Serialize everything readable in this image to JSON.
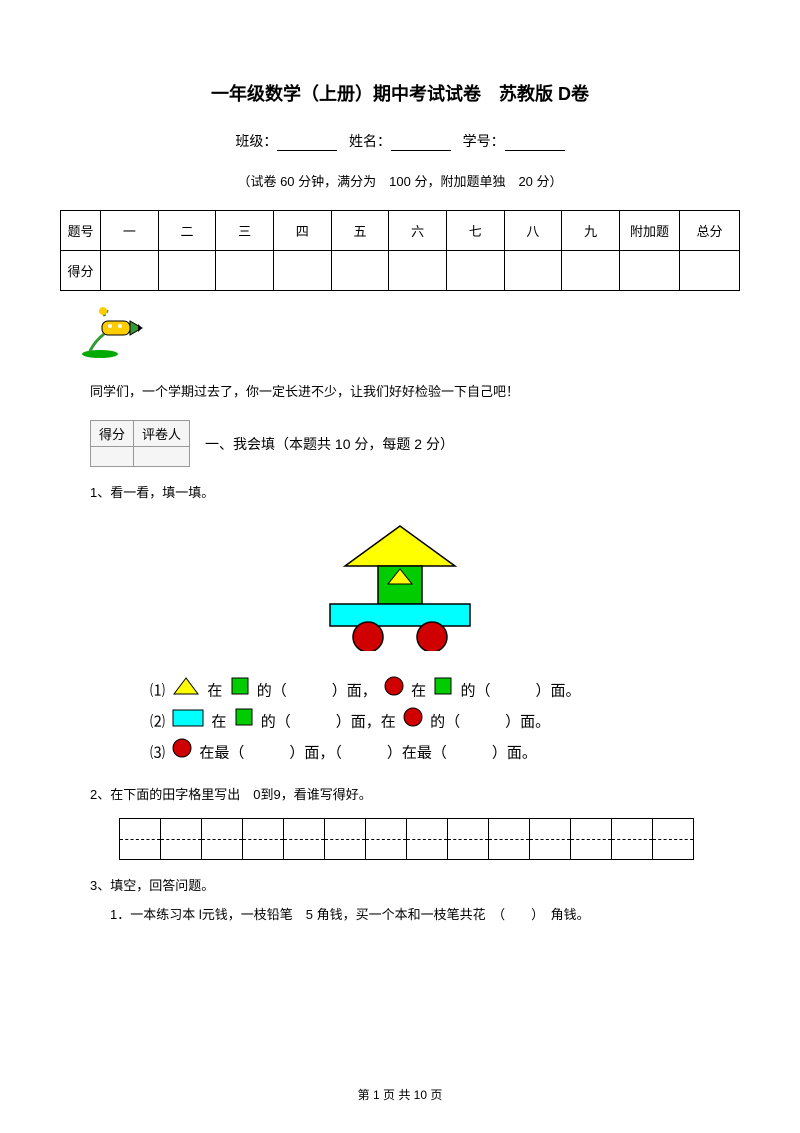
{
  "title": "一年级数学（上册）期中考试试卷　苏教版 D卷",
  "info_labels": {
    "class": "班级：",
    "name": "姓名：",
    "id": "学号："
  },
  "exam_info": "（试卷 60 分钟，满分为　100 分，附加题单独　20 分）",
  "score_table": {
    "row1_label": "题号",
    "cols": [
      "一",
      "二",
      "三",
      "四",
      "五",
      "六",
      "七",
      "八",
      "九",
      "附加题",
      "总分"
    ],
    "row2_label": "得分"
  },
  "intro": "同学们，一个学期过去了，你一定长进不少，让我们好好检验一下自己吧！",
  "score_box": {
    "h1": "得分",
    "h2": "评卷人"
  },
  "section1": "一、我会填（本题共 10 分，每题 2 分）",
  "q1": "1、看一看，填一填。",
  "shapes": {
    "colors": {
      "yellow": "#ffff00",
      "green": "#00cc00",
      "cyan": "#00ffff",
      "red": "#d00000",
      "black": "#000000"
    }
  },
  "pos": {
    "l1a": "⑴",
    "l1b": "在",
    "l1c": "的（　　　）面，",
    "l1d": "在",
    "l1e": "的（　　　）面。",
    "l2a": "⑵",
    "l2b": "在",
    "l2c": "的（　　　）面，在",
    "l2d": "的（　　　）面。",
    "l3a": "⑶",
    "l3b": "在最（　　　）面，（　　　）在最（　　　）面。"
  },
  "q2": "2、在下面的田字格里写出　0到9，看谁写得好。",
  "q3": "3、填空，回答问题。",
  "q3_1": "1．一本练习本 l元钱，一枝铅笔　5 角钱，买一个本和一枝笔共花　（　　）　角钱。",
  "footer": "第 1 页 共 10 页",
  "tian_cells": 14
}
